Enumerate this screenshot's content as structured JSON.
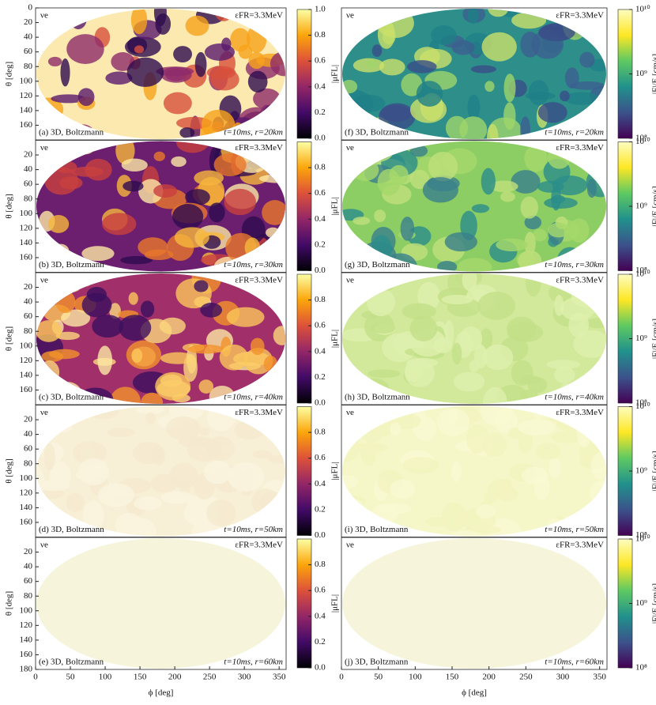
{
  "chart_data": [
    {
      "type": "heatmap",
      "species": "νe",
      "energy_label": "εFR=3.3MeV",
      "panel_label": "(a) 3D, Boltzmann",
      "run_label": "t=10ms, r=20km",
      "ylabel": "θ [deg]",
      "ylim": [
        0,
        180
      ],
      "yticks": [
        0,
        20,
        40,
        60,
        80,
        100,
        120,
        140,
        160
      ],
      "colorbar_label": "|μFL|",
      "clim": [
        0,
        1
      ],
      "cticks": [
        {
          "value": 0,
          "label": "0.0"
        },
        0.2,
        0.4,
        0.6,
        0.8,
        {
          "value": 1,
          "label": "1.0"
        }
      ],
      "colormap": [
        "#000004",
        "#420a68",
        "#932667",
        "#dd513a",
        "#fca50a",
        "#fcffa4"
      ],
      "fill": "#fbe9b0",
      "blob_colors": [
        "#5a1a6e",
        "#8e2a6a",
        "#d8503c",
        "#f7a21a",
        "#2e0b4f"
      ]
    },
    {
      "type": "heatmap",
      "species": "νe",
      "energy_label": "εFR=3.3MeV",
      "panel_label": "(b) 3D, Boltzmann",
      "run_label": "t=10ms, r=30km",
      "ylabel": "θ [deg]",
      "ylim": [
        0,
        180
      ],
      "yticks": [
        20,
        40,
        60,
        80,
        100,
        120,
        140,
        160
      ],
      "colorbar_label": "|μFL|",
      "clim": [
        0,
        1
      ],
      "cticks": [
        {
          "value": 0,
          "label": "0.0"
        },
        0.2,
        0.4,
        0.6,
        0.8
      ],
      "colormap": [
        "#000004",
        "#420a68",
        "#932667",
        "#dd513a",
        "#fca50a",
        "#fcffa4"
      ],
      "fill": "#6b1f6e",
      "blob_colors": [
        "#f6b73c",
        "#fde9a5",
        "#c9403f",
        "#2e0b4f",
        "#e8772a"
      ]
    },
    {
      "type": "heatmap",
      "species": "νe",
      "energy_label": "εFR=3.3MeV",
      "panel_label": "(c) 3D, Boltzmann",
      "run_label": "t=10ms, r=40km",
      "ylabel": "θ [deg]",
      "ylim": [
        0,
        180
      ],
      "yticks": [
        20,
        40,
        60,
        80,
        100,
        120,
        140,
        160
      ],
      "colorbar_label": "|μFL|",
      "clim": [
        0,
        1
      ],
      "cticks": [
        {
          "value": 0,
          "label": "0.0"
        },
        0.2,
        0.4,
        0.6,
        0.8
      ],
      "colormap": [
        "#000004",
        "#420a68",
        "#932667",
        "#dd513a",
        "#fca50a",
        "#fcffa4"
      ],
      "fill": "#a1306a",
      "blob_colors": [
        "#fbd77c",
        "#fde9a5",
        "#f2922a",
        "#3b0f5e",
        "#fbc75a"
      ]
    },
    {
      "type": "heatmap",
      "species": "νe",
      "energy_label": "εFR=3.3MeV",
      "panel_label": "(d) 3D, Boltzmann",
      "run_label": "t=10ms, r=50km",
      "ylabel": "θ [deg]",
      "ylim": [
        0,
        180
      ],
      "yticks": [
        20,
        40,
        60,
        80,
        100,
        120,
        140,
        160
      ],
      "colorbar_label": "|μFL|",
      "clim": [
        0,
        1
      ],
      "cticks": [
        {
          "value": 0,
          "label": "0.0"
        },
        0.2,
        0.4,
        0.6,
        0.8
      ],
      "colormap": [
        "#000004",
        "#420a68",
        "#932667",
        "#dd513a",
        "#fca50a",
        "#fcffa4"
      ],
      "fill": "#f8f0d6",
      "blob_colors": [
        "#f5ead0",
        "#faf4df"
      ]
    },
    {
      "type": "heatmap",
      "species": "νe",
      "energy_label": "εFR=3.3MeV",
      "panel_label": "(e) 3D, Boltzmann",
      "run_label": "t=10ms, r=60km",
      "ylabel": "θ [deg]",
      "ylim": [
        0,
        180
      ],
      "yticks": [
        20,
        40,
        60,
        80,
        100,
        120,
        140,
        160,
        180
      ],
      "xlabel": "ϕ [deg]",
      "xlim": [
        0,
        360
      ],
      "xticks": [
        0,
        50,
        100,
        150,
        200,
        250,
        300,
        350
      ],
      "colorbar_label": "|μFL|",
      "clim": [
        0,
        1
      ],
      "cticks": [
        {
          "value": 0,
          "label": "0.0"
        },
        0.2,
        0.4,
        0.6,
        0.8
      ],
      "colormap": [
        "#000004",
        "#420a68",
        "#932667",
        "#dd513a",
        "#fca50a",
        "#fcffa4"
      ],
      "fill": "#f6f5dc"
    },
    {
      "type": "heatmap",
      "species": "νe",
      "energy_label": "εFR=3.3MeV",
      "panel_label": "(f) 3D, Boltzmann",
      "run_label": "t=10ms, r=20km",
      "colorbar_label": "|F|/E [cm/s]",
      "log_color": true,
      "clim": [
        100000000,
        10000000000
      ],
      "cticks": [
        {
          "value": 100000000,
          "label": "10⁸"
        },
        {
          "value": 1000000000,
          "label": "10⁹"
        },
        {
          "value": 10000000000,
          "label": "10¹⁰"
        }
      ],
      "colormap": [
        "#440154",
        "#3b528b",
        "#21918c",
        "#5ec962",
        "#fde725",
        "#fdfdc0"
      ],
      "fill": "#2e8f8a",
      "blob_colors": [
        "#9fd46a",
        "#3c5f8f",
        "#1f7f87",
        "#cbe06a",
        "#3a4d88"
      ]
    },
    {
      "type": "heatmap",
      "species": "νe",
      "energy_label": "εFR=3.3MeV",
      "panel_label": "(g) 3D, Boltzmann",
      "run_label": "t=10ms, r=30km",
      "colorbar_label": "|F|/E [cm/s]",
      "log_color": true,
      "clim": [
        100000000,
        10000000000
      ],
      "cticks": [
        {
          "value": 100000000,
          "label": "10⁸"
        },
        {
          "value": 1000000000,
          "label": "10⁹"
        },
        {
          "value": 10000000000,
          "label": "10¹⁰"
        }
      ],
      "colormap": [
        "#440154",
        "#3b528b",
        "#21918c",
        "#5ec962",
        "#fde725",
        "#fdfdc0"
      ],
      "fill": "#8ccd64",
      "blob_colors": [
        "#2a8d8a",
        "#bfe07a",
        "#3a7f8c",
        "#a6d86c"
      ]
    },
    {
      "type": "heatmap",
      "species": "νe",
      "energy_label": "εFR=3.3MeV",
      "panel_label": "(h) 3D, Boltzmann",
      "run_label": "t=10ms, r=40km",
      "colorbar_label": "|F|/E [cm/s]",
      "log_color": true,
      "clim": [
        100000000,
        10000000000
      ],
      "cticks": [
        {
          "value": 100000000,
          "label": "10⁸"
        },
        {
          "value": 1000000000,
          "label": "10⁹"
        },
        {
          "value": 10000000000,
          "label": "10¹⁰"
        }
      ],
      "colormap": [
        "#440154",
        "#3b528b",
        "#21918c",
        "#5ec962",
        "#fde725",
        "#fdfdc0"
      ],
      "fill": "#d2e89a",
      "blob_colors": [
        "#c3e088",
        "#def0ae"
      ]
    },
    {
      "type": "heatmap",
      "species": "νe",
      "energy_label": "εFR=3.3MeV",
      "panel_label": "(i) 3D, Boltzmann",
      "run_label": "t=10ms, r=50km",
      "colorbar_label": "|F|/E [cm/s]",
      "log_color": true,
      "clim": [
        100000000,
        10000000000
      ],
      "cticks": [
        {
          "value": 100000000,
          "label": "10⁸"
        },
        {
          "value": 1000000000,
          "label": "10⁹"
        },
        {
          "value": 10000000000,
          "label": "10¹⁰"
        }
      ],
      "colormap": [
        "#440154",
        "#3b528b",
        "#21918c",
        "#5ec962",
        "#fde725",
        "#fdfdc0"
      ],
      "fill": "#f6f7c8",
      "blob_colors": [
        "#f2f4bf",
        "#f9f9d2"
      ]
    },
    {
      "type": "heatmap",
      "species": "νe",
      "energy_label": "εFR=3.3MeV",
      "panel_label": "(j) 3D, Boltzmann",
      "run_label": "t=10ms, r=60km",
      "xlabel": "ϕ [deg]",
      "xlim": [
        0,
        360
      ],
      "xticks": [
        0,
        50,
        100,
        150,
        200,
        250,
        300,
        350
      ],
      "colorbar_label": "|F|/E [cm/s]",
      "log_color": true,
      "clim": [
        100000000,
        10000000000
      ],
      "cticks": [
        {
          "value": 100000000,
          "label": "10⁸"
        },
        {
          "value": 1000000000,
          "label": "10⁹"
        },
        {
          "value": 10000000000,
          "label": "10¹⁰"
        }
      ],
      "colormap": [
        "#440154",
        "#3b528b",
        "#21918c",
        "#5ec962",
        "#fde725",
        "#fdfdc0"
      ],
      "fill": "#f6f5dc"
    }
  ]
}
